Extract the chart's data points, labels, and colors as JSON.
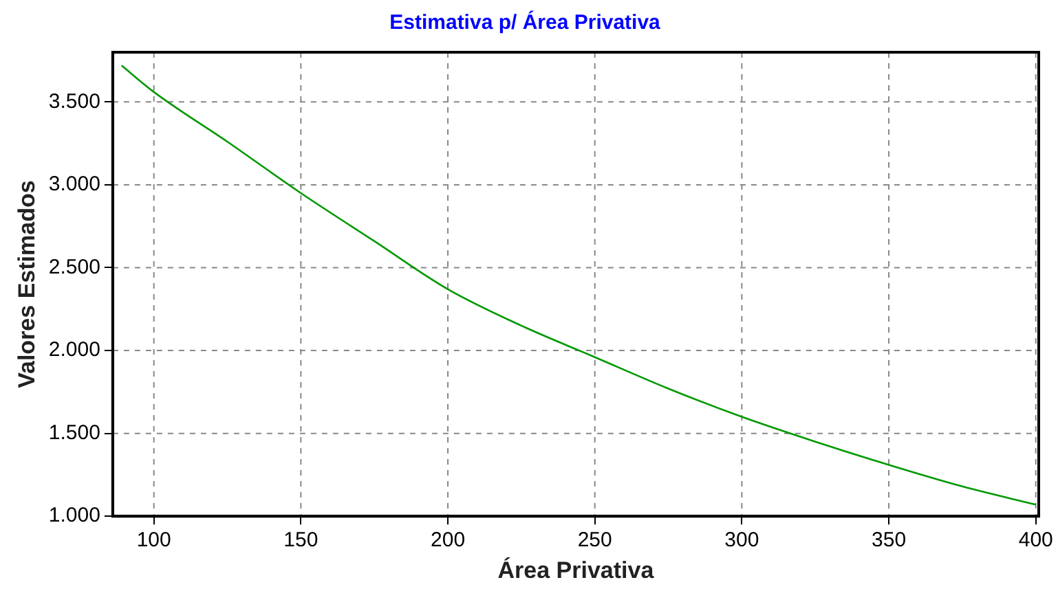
{
  "chart_data": {
    "type": "line",
    "title": "Estimativa p/ Área Privativa",
    "xlabel": "Área Privativa",
    "ylabel": "Valores Estimados",
    "x": [
      89,
      100,
      125,
      150,
      175,
      200,
      225,
      250,
      275,
      300,
      325,
      350,
      375,
      400
    ],
    "series": [
      {
        "color": "#009900",
        "values": [
          3720,
          3560,
          3260,
          2950,
          2660,
          2370,
          2150,
          1960,
          1770,
          1600,
          1450,
          1310,
          1180,
          1070
        ]
      }
    ],
    "xlim": [
      86,
      401
    ],
    "xticks": [
      100,
      150,
      200,
      250,
      300,
      350,
      400
    ],
    "ylim": [
      1000,
      3800
    ],
    "yticks": [
      {
        "value": 1000,
        "label": "1.000"
      },
      {
        "value": 1500,
        "label": "1.500"
      },
      {
        "value": 2000,
        "label": "2.000"
      },
      {
        "value": 2500,
        "label": "2.500"
      },
      {
        "value": 3000,
        "label": "3.000"
      },
      {
        "value": 3500,
        "label": "3.500"
      }
    ],
    "grid": true,
    "legend": false,
    "marker": "none",
    "line_style": "solid"
  }
}
